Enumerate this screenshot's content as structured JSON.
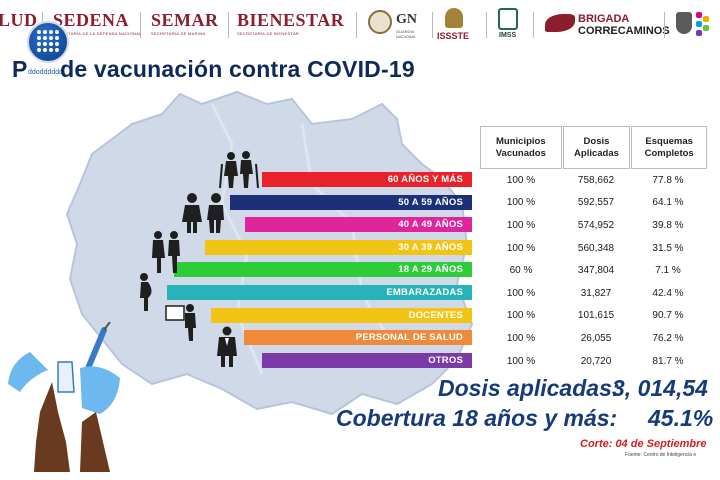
{
  "header": {
    "logos": [
      {
        "name": "SALUD",
        "text": "LUD"
      },
      {
        "name": "SEDENA",
        "text": "SEDENA",
        "sub": "SECRETARÍA DE LA DEFENSA NACIONAL"
      },
      {
        "name": "SEMAR",
        "text": "SEMAR",
        "sub": "SECRETARÍA DE MARINA"
      },
      {
        "name": "BIENESTAR",
        "text": "BIENESTAR",
        "sub": "SECRETARÍA DE BIENESTAR"
      }
    ],
    "gn": {
      "text": "GN",
      "sub": "GUARDIA NACIONAL"
    },
    "issste": "ISSSTE",
    "imss": "IMSS",
    "brigada": {
      "line1": "BRIGADA",
      "line2": "CORRECAMINOS"
    },
    "colors": {
      "guinda": "#8b1d2c"
    }
  },
  "emblem_caption": "ddodddddd",
  "title": "Plan de vacunación contra COVID-19",
  "title_visible": "P     de vacunación contra COVID-19",
  "table": {
    "headers": [
      "Municipios Vacunados",
      "Dosis Aplicadas",
      "Esquemas Completos"
    ],
    "rows": [
      {
        "group": "60 AÑOS Y MÁS",
        "municipios": "100 %",
        "dosis": "758,662",
        "esquemas": "77.8 %",
        "color": "#e8222a"
      },
      {
        "group": "50 A 59 AÑOS",
        "municipios": "100 %",
        "dosis": "592,557",
        "esquemas": "64.1 %",
        "color": "#1c2f78"
      },
      {
        "group": "40 A 49 AÑOS",
        "municipios": "100 %",
        "dosis": "574,952",
        "esquemas": "39.8 %",
        "color": "#e0249a"
      },
      {
        "group": "30 A 39 AÑOS",
        "municipios": "100 %",
        "dosis": "560,348",
        "esquemas": "31.5 %",
        "color": "#f2c416"
      },
      {
        "group": "18 A 29 AÑOS",
        "municipios": "60 %",
        "dosis": "347,804",
        "esquemas": "7.1 %",
        "color": "#2fcc3a"
      },
      {
        "group": "EMBARAZADAS",
        "municipios": "100 %",
        "dosis": "31,827",
        "esquemas": "42.4 %",
        "color": "#27b3b8"
      },
      {
        "group": "DOCENTES",
        "municipios": "100 %",
        "dosis": "101,615",
        "esquemas": "90.7 %",
        "color": "#f2c416"
      },
      {
        "group": "PERSONAL DE SALUD",
        "municipios": "100 %",
        "dosis": "26,055",
        "esquemas": "76.2 %",
        "color": "#ee8a3a"
      },
      {
        "group": "OTROS",
        "municipios": "100 %",
        "dosis": "20,720",
        "esquemas": "81.7 %",
        "color": "#7b3aa8"
      }
    ]
  },
  "summary": {
    "dosis_label": "Dosis aplicadas:",
    "dosis_value": "3, 014,54",
    "cobertura_label": "Cobertura 18 años y más:",
    "cobertura_value": "45.1%",
    "corte": "Corte: 04 de Septiembre",
    "fuente": "Fuente: Centro de Inteligencia e"
  },
  "icons": [
    "elderly-couple-icon",
    "adult-couple-icon",
    "young-couple-icon",
    "youth-icon",
    "pregnant-woman-icon",
    "teacher-icon",
    "doctor-icon",
    "syringe-icon",
    "gloved-hands-icon"
  ]
}
